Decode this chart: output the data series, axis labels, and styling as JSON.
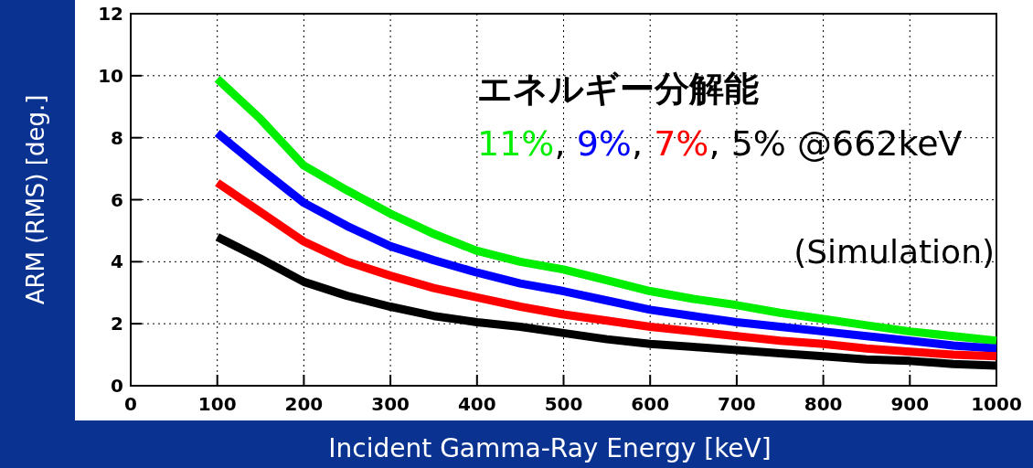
{
  "chart_data": {
    "type": "line",
    "xlabel": "Incident Gamma-Ray Energy [keV]",
    "ylabel": "ARM (RMS) [deg.]",
    "legend_title": "エネルギー分解能",
    "annotations": [
      ",",
      "@662keV",
      "(Simulation)"
    ],
    "x": [
      100,
      150,
      200,
      250,
      300,
      350,
      400,
      450,
      500,
      550,
      600,
      650,
      700,
      750,
      800,
      850,
      900,
      950,
      1000
    ],
    "series": [
      {
        "name": "11%",
        "color": "#00ee00",
        "values": [
          9.9,
          8.6,
          7.1,
          6.3,
          5.55,
          4.9,
          4.35,
          4.0,
          3.75,
          3.4,
          3.05,
          2.8,
          2.6,
          2.35,
          2.15,
          1.95,
          1.75,
          1.6,
          1.45
        ]
      },
      {
        "name": "9%",
        "color": "#0000ff",
        "values": [
          8.15,
          7.0,
          5.9,
          5.15,
          4.5,
          4.05,
          3.65,
          3.3,
          3.05,
          2.75,
          2.45,
          2.25,
          2.05,
          1.9,
          1.75,
          1.6,
          1.45,
          1.3,
          1.2
        ]
      },
      {
        "name": "7%",
        "color": "#ff0000",
        "values": [
          6.55,
          5.6,
          4.65,
          4.0,
          3.55,
          3.15,
          2.85,
          2.55,
          2.3,
          2.1,
          1.9,
          1.75,
          1.6,
          1.45,
          1.35,
          1.2,
          1.1,
          1.0,
          0.95
        ]
      },
      {
        "name": "5%",
        "color": "#000000",
        "values": [
          4.8,
          4.1,
          3.35,
          2.9,
          2.55,
          2.25,
          2.05,
          1.9,
          1.7,
          1.5,
          1.35,
          1.25,
          1.15,
          1.05,
          0.95,
          0.85,
          0.8,
          0.7,
          0.65
        ]
      }
    ],
    "xlim": [
      0,
      1000
    ],
    "ylim": [
      0,
      12
    ],
    "xticks": [
      0,
      100,
      200,
      300,
      400,
      500,
      600,
      700,
      800,
      900,
      1000
    ],
    "yticks": [
      0,
      2,
      4,
      6,
      8,
      10,
      12
    ],
    "grid": true,
    "legend": "top right",
    "marker": "none",
    "line_style": "solid"
  }
}
